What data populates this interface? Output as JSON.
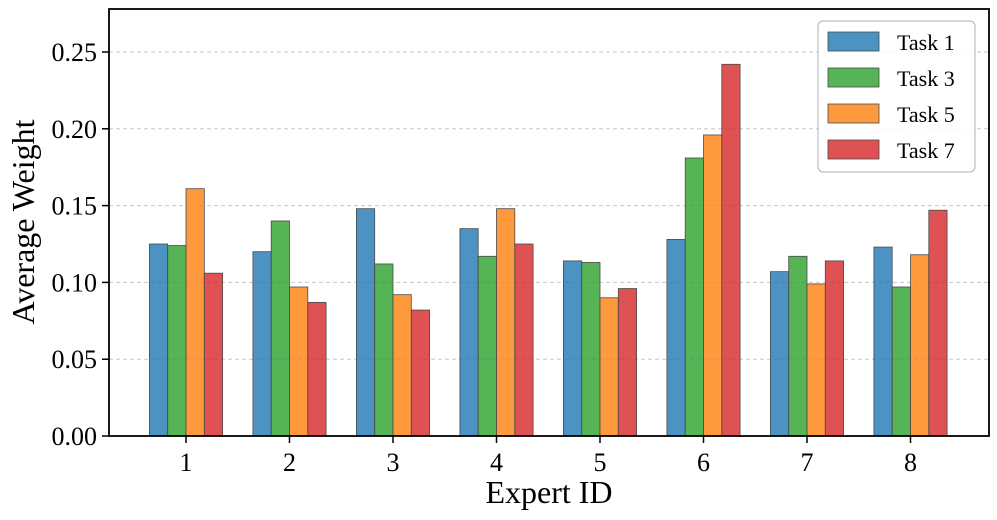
{
  "chart_data": {
    "type": "bar",
    "title": "",
    "xlabel": "Expert ID",
    "ylabel": "Average Weight",
    "categories": [
      "1",
      "2",
      "3",
      "4",
      "5",
      "6",
      "7",
      "8"
    ],
    "ylim": [
      0,
      0.278
    ],
    "yticks": [
      0.0,
      0.05,
      0.1,
      0.15,
      0.2,
      0.25
    ],
    "ytick_labels": [
      "0.00",
      "0.05",
      "0.10",
      "0.15",
      "0.20",
      "0.25"
    ],
    "grid": "horizontal, dashed",
    "legend_position": "top-right",
    "series": [
      {
        "name": "Task 1",
        "color": "#1f77b4",
        "values": [
          0.125,
          0.12,
          0.148,
          0.135,
          0.114,
          0.128,
          0.107,
          0.123
        ]
      },
      {
        "name": "Task 3",
        "color": "#2ca02c",
        "values": [
          0.124,
          0.14,
          0.112,
          0.117,
          0.113,
          0.181,
          0.117,
          0.097
        ]
      },
      {
        "name": "Task 5",
        "color": "#ff7f0e",
        "values": [
          0.161,
          0.097,
          0.092,
          0.148,
          0.09,
          0.196,
          0.099,
          0.118
        ]
      },
      {
        "name": "Task 7",
        "color": "#d62728",
        "values": [
          0.106,
          0.087,
          0.082,
          0.125,
          0.096,
          0.242,
          0.114,
          0.147
        ]
      }
    ]
  }
}
